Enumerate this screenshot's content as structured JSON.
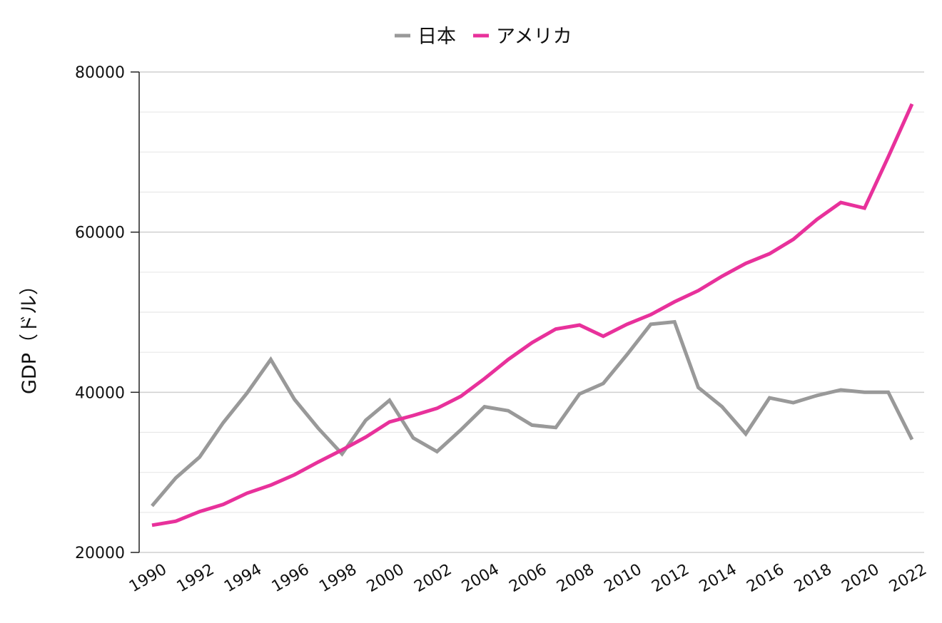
{
  "chart_data": {
    "type": "line",
    "title": "",
    "xlabel": "",
    "ylabel": "GDP（ドル）",
    "ylim": [
      20000,
      80000
    ],
    "yticks": [
      "20000",
      "40000",
      "60000",
      "80000"
    ],
    "minor_grid_step": 5000,
    "grid": true,
    "legend_position": "top",
    "x": [
      1990,
      1991,
      1992,
      1993,
      1994,
      1995,
      1996,
      1997,
      1998,
      1999,
      2000,
      2001,
      2002,
      2003,
      2004,
      2005,
      2006,
      2007,
      2008,
      2009,
      2010,
      2011,
      2012,
      2013,
      2014,
      2015,
      2016,
      2017,
      2018,
      2019,
      2020,
      2021,
      2022
    ],
    "xticks": [
      "1990",
      "1992",
      "1994",
      "1996",
      "1998",
      "2000",
      "2002",
      "2004",
      "2006",
      "2008",
      "2010",
      "2012",
      "2014",
      "2016",
      "2018",
      "2020",
      "2022"
    ],
    "series": [
      {
        "name": "日本",
        "color": "#999999",
        "values": [
          25800,
          29300,
          31900,
          36200,
          39900,
          44100,
          39100,
          35500,
          32300,
          36500,
          39000,
          34300,
          32600,
          35300,
          38200,
          37700,
          35900,
          35600,
          39800,
          41100,
          44700,
          48500,
          48800,
          40600,
          38200,
          34800,
          39300,
          38700,
          39600,
          40300,
          40000,
          40000,
          34100
        ]
      },
      {
        "name": "アメリカ",
        "color": "#e8319b",
        "values": [
          23400,
          23900,
          25100,
          26000,
          27400,
          28400,
          29700,
          31300,
          32800,
          34400,
          36300,
          37100,
          38000,
          39500,
          41700,
          44100,
          46200,
          47900,
          48400,
          47000,
          48500,
          49700,
          51300,
          52700,
          54500,
          56100,
          57300,
          59100,
          61600,
          63700,
          63000,
          69400,
          76000
        ]
      }
    ]
  }
}
